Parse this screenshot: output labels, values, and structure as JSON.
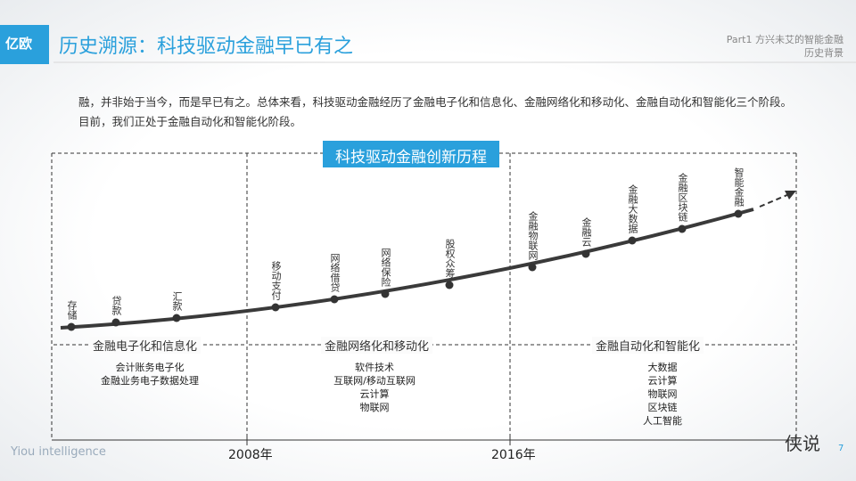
{
  "header": {
    "logo": "亿欧",
    "title": "历史溯源：科技驱动金融早已有之",
    "part": "Part1 方兴未艾的智能金融",
    "section": "历史背景"
  },
  "intro": "融，并非始于当今，而是早已有之。总体来看，科技驱动金融经历了金融电子化和信息化、金融网络化和移动化、金融自动化和智能化三个阶段。目前，我们正处于金融自动化和智能化阶段。",
  "diagram": {
    "title": "科技驱动金融创新历程",
    "milestones": [
      "存储",
      "贷款",
      "汇款",
      "移动支付",
      "网络借贷",
      "网络保险",
      "股权众筹",
      "金融物联网",
      "金融云",
      "金融大数据",
      "金融区块链",
      "智能金融"
    ],
    "phases": [
      {
        "name": "金融电子化和信息化",
        "items": [
          "会计账务电子化",
          "金融业务电子数据处理"
        ]
      },
      {
        "name": "金融网络化和移动化",
        "items": [
          "软件技术",
          "互联网/移动互联网",
          "云计算",
          "物联网"
        ]
      },
      {
        "name": "金融自动化和智能化",
        "items": [
          "大数据",
          "云计算",
          "物联网",
          "区块链",
          "人工智能"
        ]
      }
    ],
    "years": [
      "2008年",
      "2016年"
    ]
  },
  "footer": {
    "brand": "Yiou intelligence",
    "watermark": "侠说",
    "page": "7"
  }
}
